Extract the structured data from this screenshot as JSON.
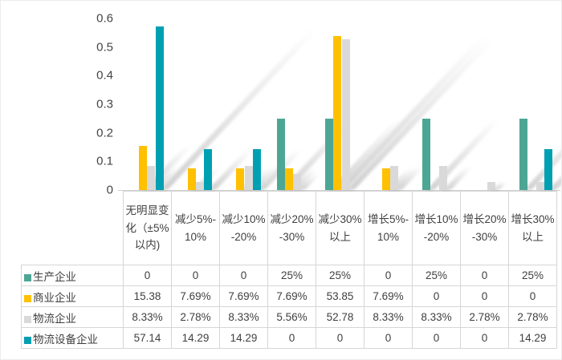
{
  "chart_data": {
    "type": "bar",
    "title": "",
    "xlabel": "",
    "ylabel": "",
    "categories": [
      "无明显变化（±5%以内)",
      "减少5%-10%",
      "减少10%-20%",
      "减少20%-30%",
      "减少30%以上",
      "增长5%-10%",
      "增长10%-20%",
      "增长20%-30%",
      "增长30%以上"
    ],
    "series": [
      {
        "name": "生产企业",
        "color": "#4DA694",
        "values": [
          0,
          0,
          0,
          0.25,
          0.25,
          0,
          0.25,
          0,
          0.25
        ],
        "table_labels": [
          "0",
          "0",
          "0",
          "25%",
          "25%",
          "0",
          "25%",
          "0",
          "25%"
        ]
      },
      {
        "name": "商业企业",
        "color": "#FFC000",
        "values": [
          0.1538,
          0.0769,
          0.0769,
          0.0769,
          0.5385,
          0.0769,
          0,
          0,
          0
        ],
        "table_labels": [
          "15.38",
          "7.69%",
          "7.69%",
          "7.69%",
          "53.85",
          "7.69%",
          "0",
          "0",
          "0"
        ]
      },
      {
        "name": "物流企业",
        "color": "#D9D9D9",
        "values": [
          0.0833,
          0.0278,
          0.0833,
          0.0556,
          0.5278,
          0.0833,
          0.0833,
          0.0278,
          0.0278
        ],
        "table_labels": [
          "8.33%",
          "2.78%",
          "8.33%",
          "5.56%",
          "52.78",
          "8.33%",
          "8.33%",
          "2.78%",
          "2.78%"
        ]
      },
      {
        "name": "物流设备企业",
        "color": "#00A0B2",
        "values": [
          0.5714,
          0.1429,
          0.1429,
          0,
          0,
          0,
          0,
          0,
          0.1429
        ],
        "table_labels": [
          "57.14",
          "14.29",
          "14.29",
          "0",
          "0",
          "0",
          "0",
          "0",
          "14.29"
        ]
      }
    ],
    "y_ticks": [
      "0.6",
      "0.5",
      "0.4",
      "0.3",
      "0.2",
      "0.1",
      "0"
    ],
    "ylim": [
      0,
      0.6
    ],
    "grid": false,
    "legend_position": "data-table-left",
    "bar_shadow": "diagonal-upper-right"
  }
}
